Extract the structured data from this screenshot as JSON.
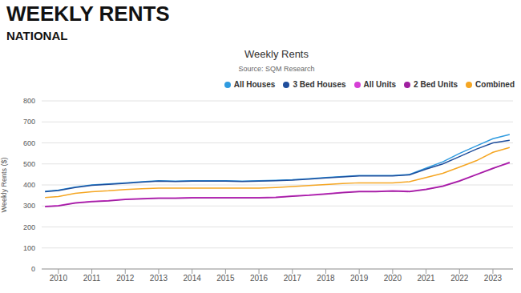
{
  "header": {
    "title": "WEEKLY RENTS",
    "subtitle": "NATIONAL"
  },
  "chart_data": {
    "type": "line",
    "title": "Weekly Rents",
    "subtitle": "Source: SQM Research",
    "y_label": "Weekly Rents ($)",
    "x": [
      2009.6,
      2010,
      2010.5,
      2011,
      2011.5,
      2012,
      2012.5,
      2013,
      2013.5,
      2014,
      2014.5,
      2015,
      2015.5,
      2016,
      2016.5,
      2017,
      2017.5,
      2018,
      2018.5,
      2019,
      2019.5,
      2020,
      2020.5,
      2021,
      2021.5,
      2022,
      2022.5,
      2023,
      2023.5
    ],
    "series": [
      {
        "name": "All Houses",
        "color": "#2f9be0",
        "values": [
          370,
          375,
          390,
          400,
          405,
          410,
          415,
          420,
          418,
          420,
          420,
          420,
          418,
          420,
          422,
          425,
          430,
          435,
          440,
          445,
          445,
          445,
          450,
          480,
          510,
          550,
          585,
          620,
          640
        ]
      },
      {
        "name": "3 Bed Houses",
        "color": "#1f4e9c",
        "values": [
          368,
          373,
          388,
          398,
          403,
          408,
          413,
          418,
          416,
          418,
          418,
          418,
          416,
          418,
          420,
          423,
          428,
          433,
          438,
          443,
          443,
          443,
          448,
          475,
          500,
          535,
          570,
          600,
          612
        ]
      },
      {
        "name": "All Units",
        "color": "#d63fd6",
        "values": [
          298,
          302,
          315,
          322,
          326,
          332,
          335,
          338,
          338,
          340,
          340,
          340,
          340,
          340,
          342,
          348,
          352,
          358,
          365,
          370,
          370,
          372,
          370,
          380,
          395,
          420,
          450,
          480,
          505
        ]
      },
      {
        "name": "2 Bed Units",
        "color": "#a020a0",
        "values": [
          296,
          300,
          313,
          320,
          324,
          330,
          333,
          336,
          336,
          338,
          338,
          338,
          338,
          338,
          340,
          346,
          350,
          356,
          363,
          368,
          368,
          370,
          368,
          378,
          393,
          418,
          448,
          478,
          508
        ]
      },
      {
        "name": "Combined",
        "color": "#f5a623",
        "values": [
          340,
          345,
          360,
          368,
          372,
          378,
          382,
          385,
          385,
          385,
          385,
          385,
          385,
          385,
          388,
          392,
          397,
          402,
          407,
          410,
          410,
          410,
          415,
          435,
          455,
          485,
          515,
          555,
          578
        ]
      }
    ],
    "xlim": [
      2009.5,
      2023.6
    ],
    "xticks": [
      2010,
      2011,
      2012,
      2013,
      2014,
      2015,
      2016,
      2017,
      2018,
      2019,
      2020,
      2021,
      2022,
      2023
    ],
    "ylim": [
      0,
      800
    ],
    "yticks": [
      0,
      100,
      200,
      300,
      400,
      500,
      600,
      700,
      800
    ],
    "grid": true,
    "legend": "top-right"
  }
}
